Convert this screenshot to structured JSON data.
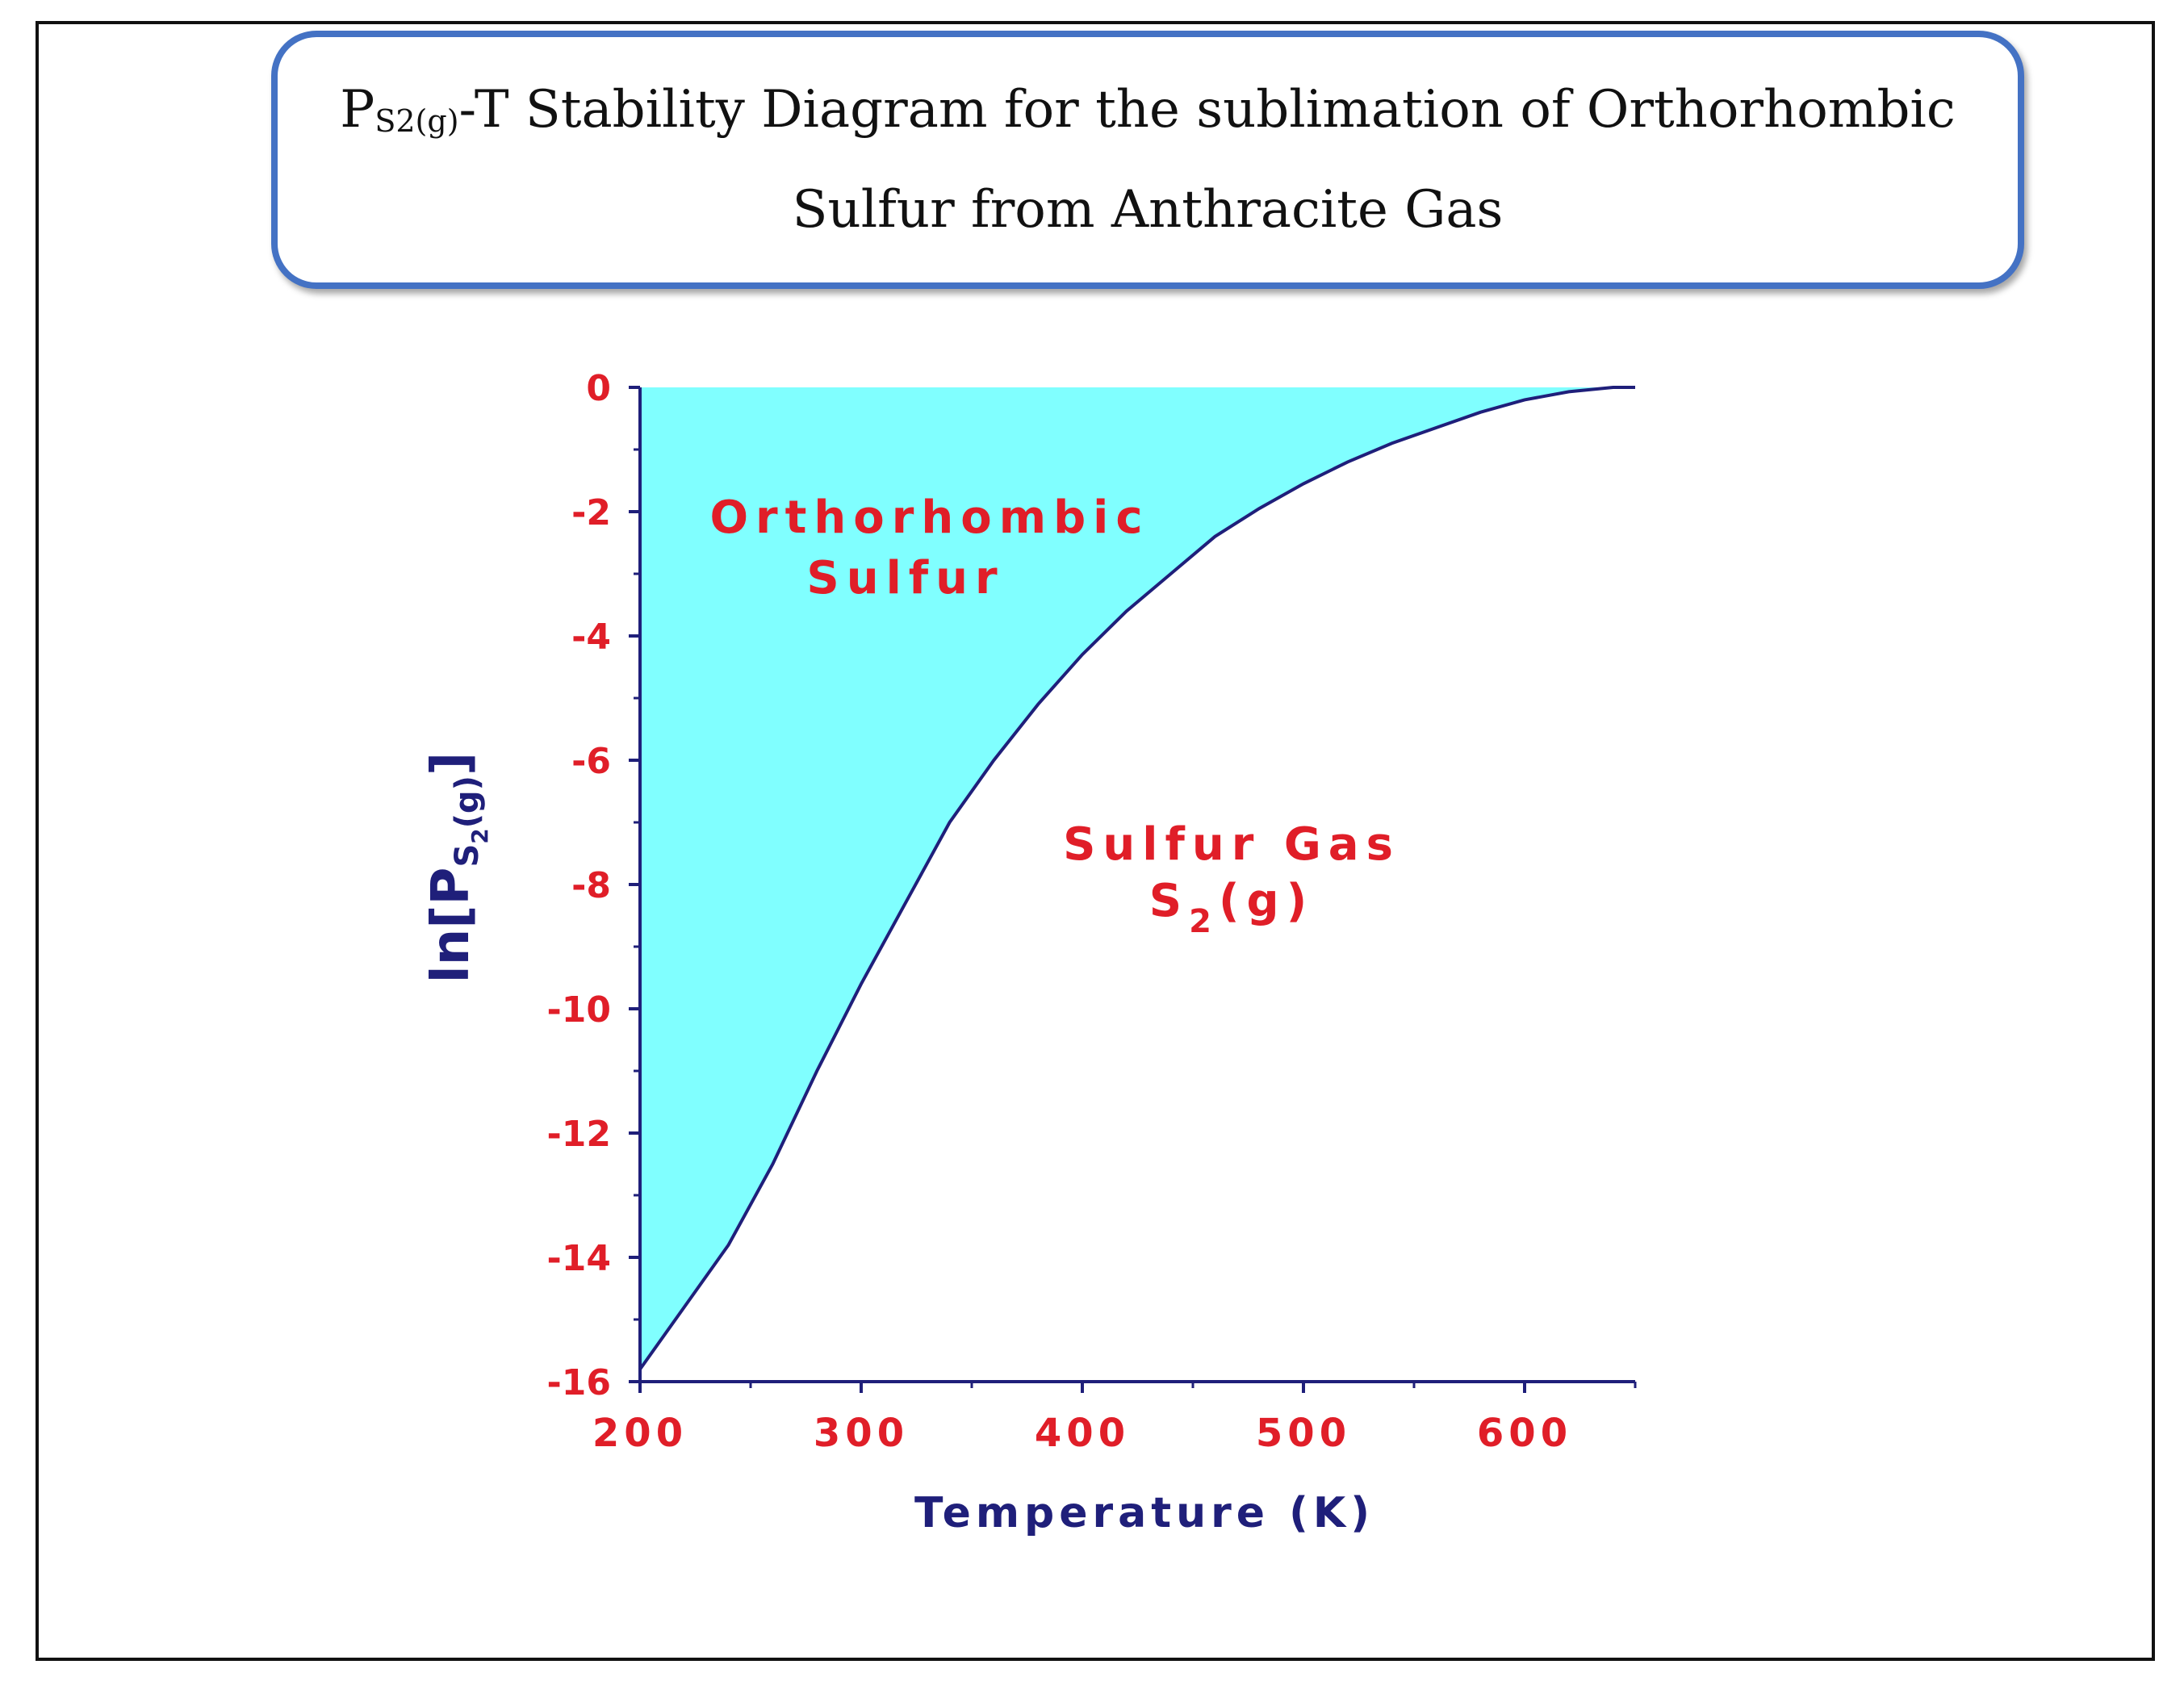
{
  "title": {
    "line1_prefix": "P",
    "line1_sub": "S2(g)",
    "line1_rest": "-T Stability Diagram for the sublimation of Orthorhombic",
    "line2": "Sulfur from Anthracite Gas"
  },
  "colors": {
    "frame": "#111111",
    "title_border": "#4472c4",
    "region_fill": "#80ffff",
    "curve": "#1f1f7a",
    "axis": "#1f1f7a",
    "tick_labels": "#e01e28",
    "region_labels": "#e01e28"
  },
  "chart_data": {
    "type": "area",
    "title": "",
    "xlabel": "Temperature (K)",
    "ylabel_main": "ln[P",
    "ylabel_sub": "S",
    "ylabel_subsub": "2",
    "ylabel_sub_after": "(g)",
    "ylabel_close": "]",
    "xlim": [
      200,
      650
    ],
    "ylim": [
      -16,
      0
    ],
    "x_ticks": [
      200,
      300,
      400,
      500,
      600
    ],
    "x_tick_labels": [
      "200",
      "300",
      "400",
      "500",
      "600"
    ],
    "y_ticks": [
      0,
      -2,
      -4,
      -6,
      -8,
      -10,
      -12,
      -14,
      -16
    ],
    "y_tick_labels": [
      "0",
      "-2",
      "-4",
      "-6",
      "-8",
      "-10",
      "-12",
      "-14",
      "-16"
    ],
    "grid": false,
    "series": [
      {
        "x": [
          200,
          220,
          240,
          260,
          280,
          300,
          320,
          340,
          360,
          380,
          400,
          420,
          440,
          460,
          480,
          500,
          520,
          540,
          560,
          580,
          600,
          620,
          640,
          650
        ],
        "y": [
          -15.8,
          -14.8,
          -13.8,
          -12.5,
          -11.0,
          -9.6,
          -8.3,
          -7.0,
          -6.0,
          -5.1,
          -4.3,
          -3.6,
          -3.0,
          -2.4,
          -1.95,
          -1.55,
          -1.2,
          -0.9,
          -0.65,
          -0.4,
          -0.2,
          -0.07,
          0.0,
          0.0
        ]
      }
    ],
    "annotations": {
      "region_upper_line1": "Orthorhombic",
      "region_upper_line2": "Sulfur",
      "region_lower_line1": "Sulfur Gas",
      "region_lower_line2_main": "S",
      "region_lower_line2_sub": "2",
      "region_lower_line2_rest": "(g)"
    }
  }
}
